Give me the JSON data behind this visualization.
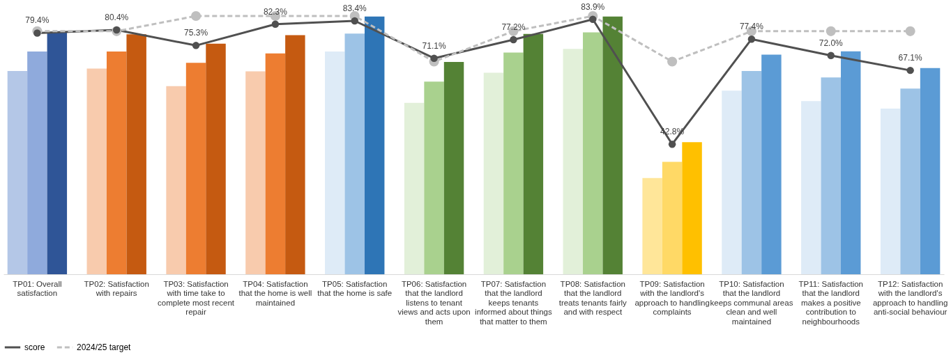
{
  "chart_data": {
    "type": "bar",
    "categories": [
      "TP01: Overall satisfaction",
      "TP02: Satisfaction with repairs",
      "TP03: Satisfaction with time take to complete most recent repair",
      "TP04: Satisfaction that the home is well maintained",
      "TP05: Satisfaction that the home is safe",
      "TP06: Satisfaction that the landlord listens to tenant views and acts upon them",
      "TP07: Satisfaction that the landlord keeps tenants informed about things that matter to them",
      "TP08: Satisfaction that the landlord treats tenants fairly and with respect",
      "TP09: Satisfaction with the landlord's approach to handling complaints",
      "TP10: Satisfaction that the landlord keeps communal areas clean and well maintained",
      "TP11: Satisfaction that the landlord makes a positive contribution to neighbourhoods",
      "TP12: Satisfaction with the landlord's approach to handling anti-social behaviour"
    ],
    "tick_labels": "x",
    "legend": "bottom",
    "series": [
      {
        "colors": [
          "#b4c7e7",
          "#f8cbad",
          "#f8cbad",
          "#f8cbad",
          "#deebf7",
          "#e2f0d9",
          "#e2f0d9",
          "#e2f0d9",
          "#ffe699",
          "#deebf7",
          "#deebf7",
          "#deebf7"
        ],
        "values": [
          66.9,
          67.7,
          61.9,
          66.8,
          73.3,
          56.4,
          66.3,
          74.2,
          31.7,
          60.4,
          57.0,
          54.5
        ]
      },
      {
        "colors": [
          "#8faadc",
          "#ed7d31",
          "#ed7d31",
          "#ed7d31",
          "#9dc3e6",
          "#a9d18e",
          "#a9d18e",
          "#a9d18e",
          "#ffd966",
          "#9dc3e6",
          "#9dc3e6",
          "#9dc3e6"
        ],
        "values": [
          73.3,
          73.3,
          69.6,
          72.7,
          79.2,
          63.4,
          73.0,
          79.6,
          37.0,
          66.9,
          64.8,
          61.1
        ]
      },
      {
        "colors": [
          "#2f5597",
          "#c55a11",
          "#c55a11",
          "#c55a11",
          "#2e75b6",
          "#548235",
          "#548235",
          "#548235",
          "#ffc000",
          "#5b9bd5",
          "#5b9bd5",
          "#5b9bd5"
        ],
        "values": [
          79.5,
          79.0,
          75.9,
          78.7,
          84.8,
          69.9,
          79.1,
          84.8,
          43.5,
          72.3,
          73.4,
          67.9
        ]
      },
      {
        "type": "line",
        "name": "score",
        "color": "#505050",
        "marker": "circle",
        "line_style": "solid",
        "values": [
          79.4,
          80.4,
          75.3,
          82.3,
          83.4,
          71.1,
          77.2,
          83.9,
          42.8,
          77.4,
          72.0,
          67.1
        ],
        "value_labels": [
          "79.4%",
          "80.4%",
          "75.3%",
          "82.3%",
          "83.4%",
          "71.1%",
          "77.2%",
          "83.9%",
          "42.8%",
          "77.4%",
          "72.0%",
          "67.1%"
        ]
      },
      {
        "type": "line",
        "name": "2024/25 target",
        "color": "#bfbfbf",
        "marker": "circle",
        "line_style": "dashed",
        "values": [
          80,
          80,
          85,
          85,
          85,
          70,
          80,
          85,
          70,
          80,
          80,
          80
        ]
      }
    ]
  }
}
